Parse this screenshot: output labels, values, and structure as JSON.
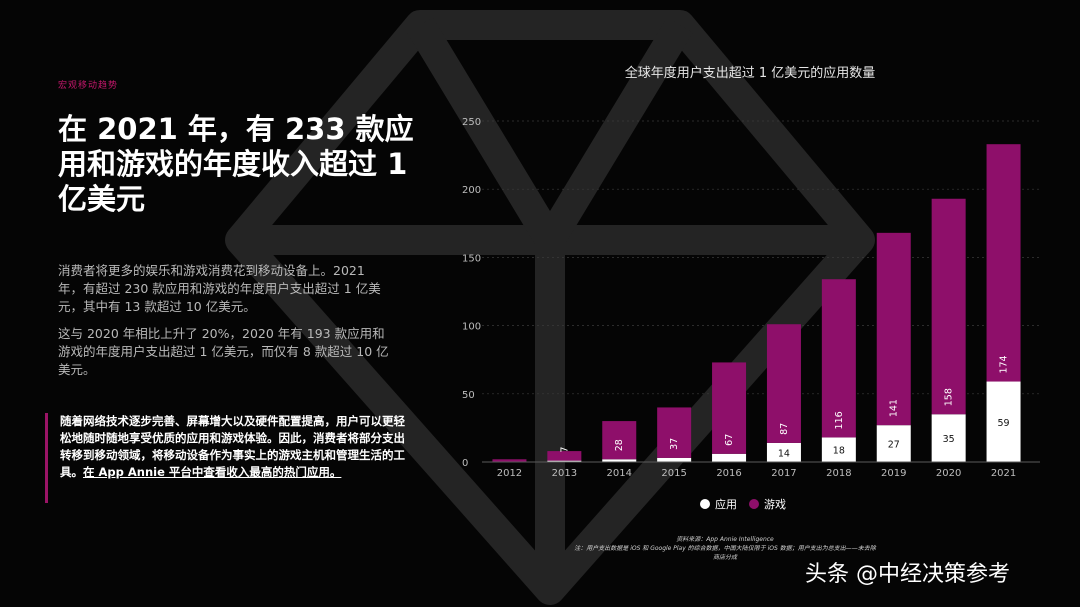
{
  "section_tag": "宏观移动趋势",
  "headline": "在 2021 年，有 233 款应用和游戏的年度收入超过 1 亿美元",
  "para1": "消费者将更多的娱乐和游戏消费花到移动设备上。2021 年，有超过 230 款应用和游戏的年度用户支出超过 1 亿美元，其中有 13 款超过 10 亿美元。",
  "para2": "这与 2020 年相比上升了 20%，2020 年有 193 款应用和游戏的年度用户支出超过 1 亿美元，而仅有 8 款超过 10 亿美元。",
  "quote_text": "随着网络技术逐步完善、屏幕增大以及硬件配置提高，用户可以更轻松地随时随地享受优质的应用和游戏体验。因此，消费者将部分支出转移到移动领域，将移动设备作为事实上的游戏主机和管理生活的工具。",
  "quote_link": "在 App Annie 平台中查看收入最高的热门应用。",
  "source_line1": "资料来源：App Annie Intelligence",
  "source_line2": "注：用户支出数据是 iOS 和 Google Play 的综合数据，中国大陆仅限于 iOS 数据；用户支出为总支出——未去除",
  "source_line3": "商店分成",
  "watermark": "头条 @中经决策参考",
  "colors": {
    "games": "#8e0f6a",
    "apps": "#ffffff",
    "accent": "#c2186b",
    "background": "#050505"
  },
  "chart_data": {
    "type": "bar",
    "stacked": true,
    "title": "全球年度用户支出超过 1 亿美元的应用数量",
    "categories": [
      "2012",
      "2013",
      "2014",
      "2015",
      "2016",
      "2017",
      "2018",
      "2019",
      "2020",
      "2021"
    ],
    "series": [
      {
        "name": "应用",
        "values": [
          0,
          1,
          2,
          3,
          6,
          14,
          18,
          27,
          35,
          59
        ],
        "labels": [
          "",
          "",
          "",
          "",
          "",
          "14",
          "18",
          "27",
          "35",
          "59"
        ]
      },
      {
        "name": "游戏",
        "values": [
          2,
          7,
          28,
          37,
          67,
          87,
          116,
          141,
          158,
          174
        ],
        "labels": [
          "",
          "7",
          "28",
          "37",
          "67",
          "87",
          "116",
          "141",
          "158",
          "174"
        ]
      }
    ],
    "yticks": [
      0,
      50,
      100,
      150,
      200,
      250
    ],
    "ylim": [
      0,
      250
    ],
    "legend": "bottom"
  }
}
